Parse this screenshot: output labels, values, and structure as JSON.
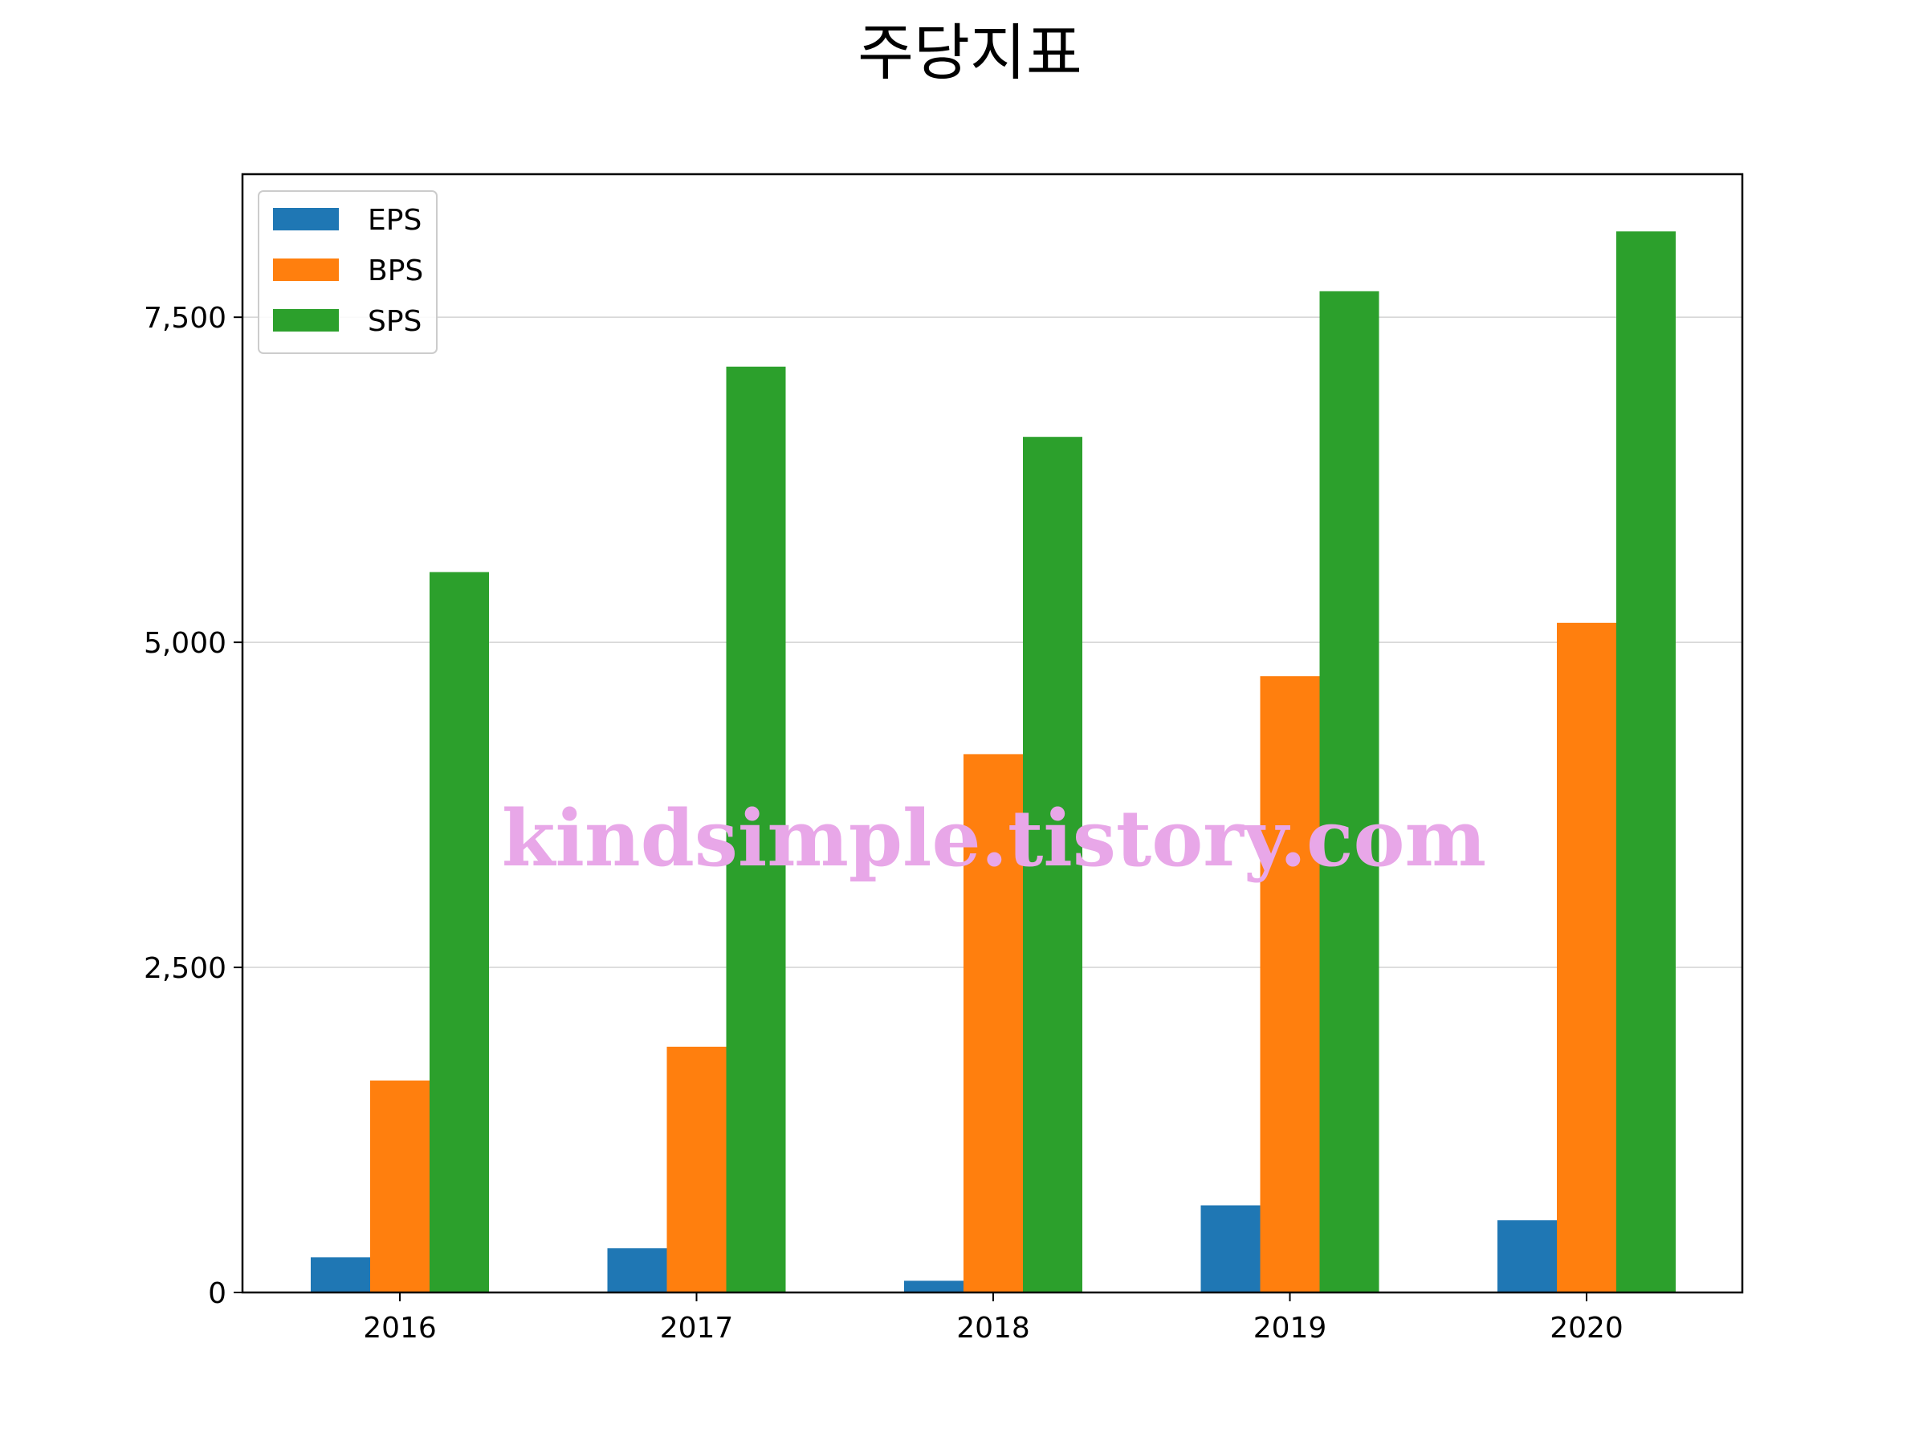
{
  "chart_data": {
    "type": "bar",
    "title": "주당지표",
    "categories": [
      "2016",
      "2017",
      "2018",
      "2019",
      "2020"
    ],
    "series": [
      {
        "name": "EPS",
        "color": "#1f77b4",
        "values": [
          270,
          340,
          90,
          670,
          555
        ]
      },
      {
        "name": "BPS",
        "color": "#ff7f0e",
        "values": [
          1630,
          1890,
          4140,
          4740,
          5150
        ]
      },
      {
        "name": "SPS",
        "color": "#2ca02c",
        "values": [
          5540,
          7120,
          6580,
          7700,
          8160
        ]
      }
    ],
    "xlabel": "",
    "ylabel": "",
    "ylim": [
      0,
      8600
    ],
    "yticks": [
      0,
      2500,
      5000,
      7500
    ],
    "ytick_labels": [
      "0",
      "2,500",
      "5,000",
      "7,500"
    ],
    "grid": "horizontal",
    "legend_position": "top-left"
  },
  "watermark": "kindsimple.tistory.com"
}
